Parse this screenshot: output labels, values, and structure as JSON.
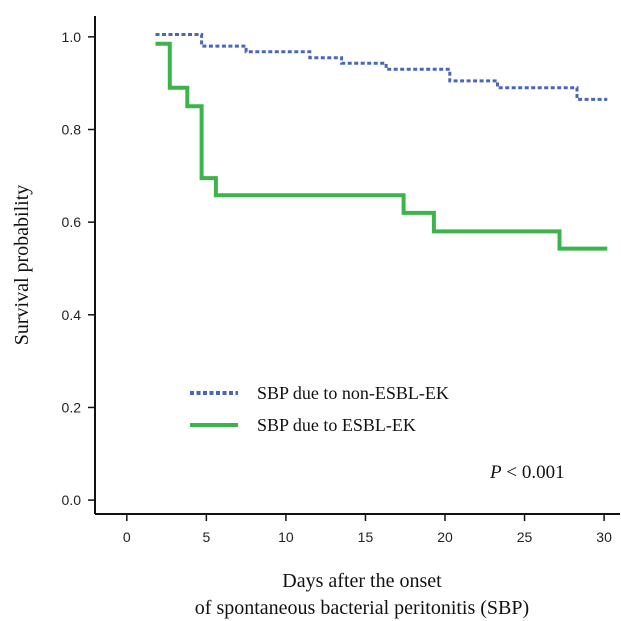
{
  "chart_data": {
    "type": "line",
    "subtype": "kaplan-meier step curve",
    "title": "",
    "xlabel_line1": "Days after the onset",
    "xlabel_line2": "of spontaneous bacterial peritonitis (SBP)",
    "ylabel": "Survival probability",
    "xlim": [
      -2,
      31
    ],
    "ylim": [
      -0.03,
      1.045
    ],
    "x_ticks": [
      0,
      5,
      10,
      15,
      20,
      25,
      30
    ],
    "x_tick_labels": [
      "0",
      "5",
      "10",
      "15",
      "20",
      "25",
      "30"
    ],
    "y_ticks": [
      0.0,
      0.2,
      0.4,
      0.6,
      0.8,
      1.0
    ],
    "y_tick_labels": [
      "0.0",
      "0.2",
      "0.4",
      "0.6",
      "0.8",
      "1.0"
    ],
    "grid": false,
    "legend_position": "bottom-left",
    "series": [
      {
        "name": "SBP due to non-ESBL-EK",
        "color": "#4a66b8",
        "style": "dashed",
        "x": [
          1.8,
          4.7,
          7.5,
          11.5,
          13.5,
          16.3,
          20.3,
          23.3,
          28.3,
          30.2
        ],
        "y": [
          1.005,
          0.98,
          0.968,
          0.955,
          0.943,
          0.93,
          0.905,
          0.89,
          0.865,
          0.865
        ]
      },
      {
        "name": "SBP due to ESBL-EK",
        "color": "#3cb44b",
        "style": "solid",
        "x": [
          1.8,
          2.7,
          3.8,
          4.7,
          5.6,
          17.4,
          19.3,
          27.2,
          30.2
        ],
        "y": [
          0.985,
          0.89,
          0.85,
          0.695,
          0.658,
          0.62,
          0.58,
          0.543,
          0.543
        ]
      }
    ],
    "annotation": {
      "p_symbol": "P",
      "p_rest": " < 0.001"
    }
  }
}
